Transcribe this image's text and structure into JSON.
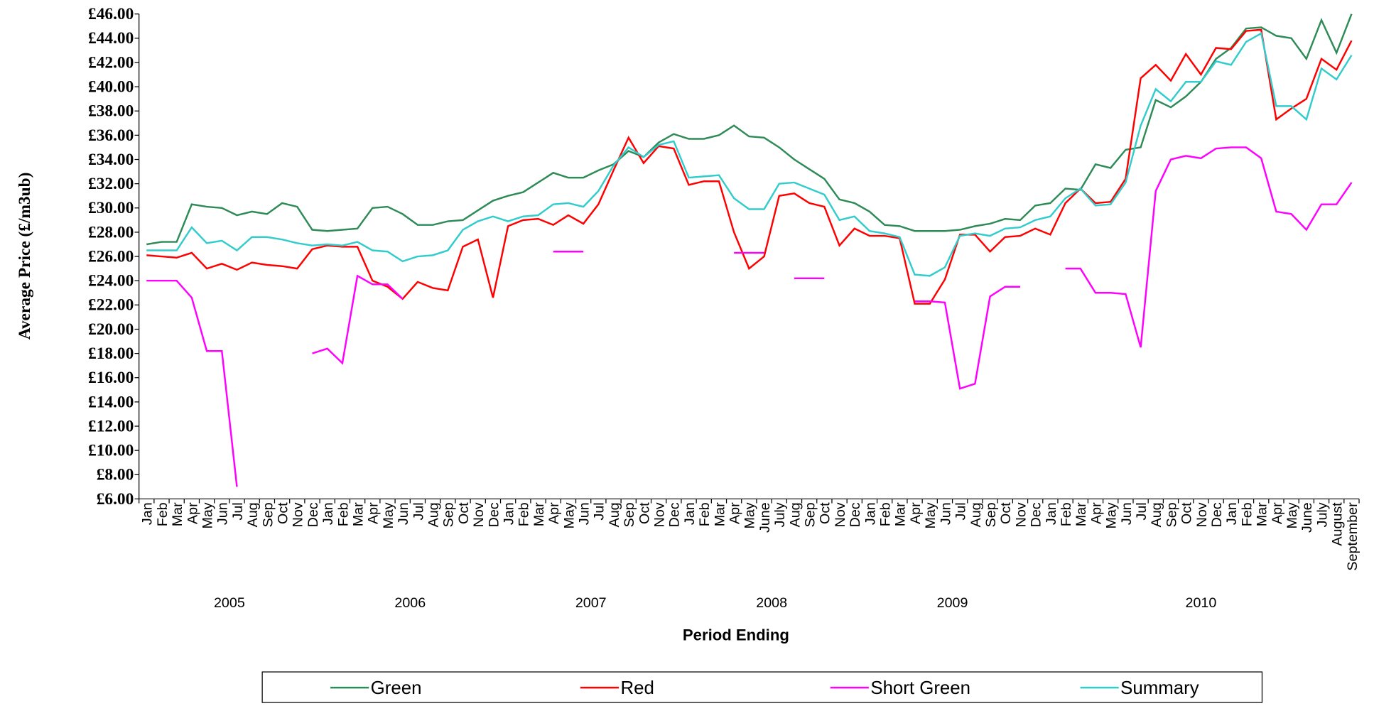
{
  "chart_data": {
    "type": "line",
    "y_label": "Average Price (£/m3ub)",
    "x_label": "Period Ending",
    "categories": [
      "Jan",
      "Feb",
      "Mar",
      "Apr",
      "May",
      "Jun",
      "Jul",
      "Aug",
      "Sep",
      "Oct",
      "Nov",
      "Dec",
      "Jan",
      "Feb",
      "Mar",
      "Apr",
      "May",
      "Jun",
      "Jul",
      "Aug",
      "Sep",
      "Oct",
      "Nov",
      "Dec",
      "Jan",
      "Feb",
      "Mar",
      "Apr",
      "May",
      "Jun",
      "Jul",
      "Aug",
      "Sep",
      "Oct",
      "Nov",
      "Dec",
      "Jan",
      "Feb",
      "Mar",
      "Apr",
      "May",
      "June",
      "July",
      "Aug",
      "Sep",
      "Oct",
      "Nov",
      "Dec",
      "Jan",
      "Feb",
      "Mar",
      "Apr",
      "May",
      "Jun",
      "Jul",
      "Aug",
      "Sep",
      "Oct",
      "Nov",
      "Dec",
      "Jan",
      "Feb",
      "Mar",
      "Apr",
      "May",
      "Jun",
      "Jul",
      "Aug",
      "Sep",
      "Oct",
      "Nov",
      "Dec",
      "Jan",
      "Feb",
      "Mar",
      "Apr",
      "May",
      "June",
      "July",
      "August",
      "September"
    ],
    "groups": [
      {
        "label": "2005",
        "count": 12
      },
      {
        "label": "2006",
        "count": 12
      },
      {
        "label": "2007",
        "count": 12
      },
      {
        "label": "2008",
        "count": 12
      },
      {
        "label": "2009",
        "count": 12
      },
      {
        "label": "2010",
        "count": 21
      }
    ],
    "series": [
      {
        "name": "Green",
        "color": "#2e8b57",
        "values": [
          27.0,
          27.2,
          27.2,
          30.3,
          30.1,
          30.0,
          29.4,
          29.7,
          29.5,
          30.4,
          30.1,
          28.2,
          28.1,
          28.2,
          28.3,
          30.0,
          30.1,
          29.5,
          28.6,
          28.6,
          28.9,
          29.0,
          29.8,
          30.6,
          31.0,
          31.3,
          32.1,
          32.9,
          32.5,
          32.5,
          33.1,
          33.6,
          34.7,
          34.2,
          35.4,
          36.1,
          35.7,
          35.7,
          36.0,
          36.8,
          35.9,
          35.8,
          35.0,
          34.0,
          33.2,
          32.4,
          30.7,
          30.4,
          29.7,
          28.6,
          28.5,
          28.1,
          28.1,
          28.1,
          28.2,
          28.5,
          28.7,
          29.1,
          29.0,
          30.2,
          30.4,
          31.6,
          31.5,
          33.6,
          33.3,
          34.8,
          35.0,
          38.9,
          38.3,
          39.2,
          40.4,
          42.3,
          43.2,
          44.8,
          44.9,
          44.2,
          44.0,
          42.3,
          45.5,
          42.8,
          46.0
        ]
      },
      {
        "name": "Red",
        "color": "#ff0000",
        "values": [
          26.1,
          26.0,
          25.9,
          26.3,
          25.0,
          25.4,
          24.9,
          25.5,
          25.3,
          25.2,
          25.0,
          26.6,
          26.9,
          26.8,
          26.8,
          24.0,
          23.5,
          22.5,
          23.9,
          23.4,
          23.2,
          26.8,
          27.4,
          22.6,
          28.5,
          29.0,
          29.1,
          28.6,
          29.4,
          28.7,
          30.3,
          33.1,
          35.8,
          33.7,
          35.1,
          34.9,
          31.9,
          32.2,
          32.2,
          28.0,
          25.0,
          26.0,
          31.0,
          31.2,
          30.4,
          30.1,
          26.9,
          28.3,
          27.7,
          27.7,
          27.5,
          22.1,
          22.1,
          24.1,
          27.8,
          27.8,
          26.4,
          27.6,
          27.7,
          28.3,
          27.8,
          30.4,
          31.6,
          30.4,
          30.5,
          32.4,
          40.7,
          41.8,
          40.5,
          42.7,
          41.0,
          43.2,
          43.1,
          44.6,
          44.7,
          37.3,
          38.2,
          39.0,
          42.3,
          41.4,
          43.8
        ]
      },
      {
        "name": "Short Green",
        "color": "#ff00ff",
        "values": [
          24.0,
          24.0,
          24.0,
          22.6,
          18.2,
          18.2,
          7.0,
          null,
          null,
          null,
          null,
          18.0,
          18.4,
          17.2,
          24.4,
          23.7,
          23.7,
          22.5,
          null,
          null,
          null,
          null,
          null,
          null,
          null,
          null,
          null,
          26.4,
          26.4,
          26.4,
          null,
          null,
          null,
          null,
          null,
          null,
          null,
          null,
          null,
          26.3,
          26.3,
          26.3,
          null,
          24.2,
          24.2,
          24.2,
          null,
          null,
          null,
          null,
          null,
          22.3,
          22.3,
          22.2,
          15.1,
          15.5,
          22.7,
          23.5,
          23.5,
          null,
          null,
          25.0,
          25.0,
          23.0,
          23.0,
          22.9,
          18.5,
          31.4,
          34.0,
          34.3,
          34.1,
          34.9,
          35.0,
          35.0,
          34.1,
          29.7,
          29.5,
          28.2,
          30.3,
          30.3,
          32.1
        ]
      },
      {
        "name": "Summary",
        "color": "#33cccc",
        "values": [
          26.5,
          26.5,
          26.5,
          28.4,
          27.1,
          27.3,
          26.5,
          27.6,
          27.6,
          27.4,
          27.1,
          26.9,
          27.0,
          26.9,
          27.2,
          26.5,
          26.4,
          25.6,
          26.0,
          26.1,
          26.5,
          28.2,
          28.9,
          29.3,
          28.9,
          29.3,
          29.4,
          30.3,
          30.4,
          30.1,
          31.4,
          33.5,
          35.0,
          34.2,
          35.2,
          35.5,
          32.5,
          32.6,
          32.7,
          30.8,
          29.9,
          29.9,
          32.0,
          32.1,
          31.6,
          31.1,
          29.0,
          29.3,
          28.1,
          27.9,
          27.6,
          24.5,
          24.4,
          25.1,
          27.7,
          27.9,
          27.7,
          28.3,
          28.4,
          29.0,
          29.3,
          30.8,
          31.6,
          30.2,
          30.3,
          32.1,
          36.8,
          39.8,
          38.8,
          40.4,
          40.4,
          42.1,
          41.8,
          43.7,
          44.4,
          38.4,
          38.4,
          37.3,
          41.5,
          40.6,
          42.6
        ]
      }
    ],
    "ylim": [
      6,
      46
    ],
    "yticks": [
      {
        "value": 6,
        "label": "£6.00"
      },
      {
        "value": 8,
        "label": "£8.00"
      },
      {
        "value": 10,
        "label": "£10.00"
      },
      {
        "value": 12,
        "label": "£12.00"
      },
      {
        "value": 14,
        "label": "£14.00"
      },
      {
        "value": 16,
        "label": "£16.00"
      },
      {
        "value": 18,
        "label": "£18.00"
      },
      {
        "value": 20,
        "label": "£20.00"
      },
      {
        "value": 22,
        "label": "£22.00"
      },
      {
        "value": 24,
        "label": "£24.00"
      },
      {
        "value": 26,
        "label": "£26.00"
      },
      {
        "value": 28,
        "label": "£28.00"
      },
      {
        "value": 30,
        "label": "£30.00"
      },
      {
        "value": 32,
        "label": "£32.00"
      },
      {
        "value": 34,
        "label": "£34.00"
      },
      {
        "value": 36,
        "label": "£36.00"
      },
      {
        "value": 38,
        "label": "£38.00"
      },
      {
        "value": 40,
        "label": "£40.00"
      },
      {
        "value": 42,
        "label": "£42.00"
      },
      {
        "value": 44,
        "label": "£44.00"
      },
      {
        "value": 46,
        "label": "£46.00"
      }
    ],
    "grid": false,
    "legend": "bottom"
  }
}
